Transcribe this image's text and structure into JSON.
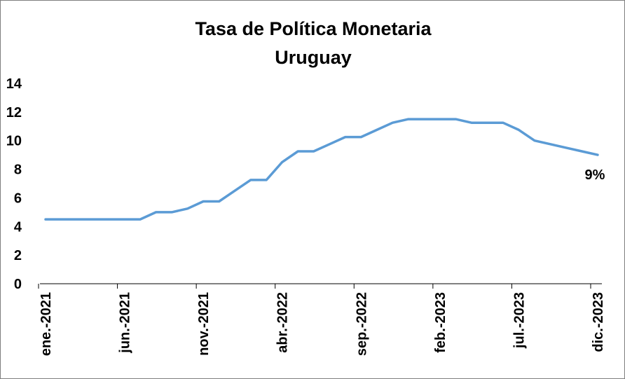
{
  "chart_data": {
    "type": "line",
    "title": "Tasa de Política Monetaria",
    "subtitle": "Uruguay",
    "xlabel": "",
    "ylabel": "",
    "ylim": [
      0,
      14
    ],
    "yticks": [
      "0",
      "2",
      "4",
      "6",
      "8",
      "10",
      "12",
      "14"
    ],
    "grid": false,
    "legend": "none",
    "line_color": "#5B9BD5",
    "x": [
      "2021-01",
      "2021-02",
      "2021-03",
      "2021-04",
      "2021-05",
      "2021-06",
      "2021-07",
      "2021-08",
      "2021-09",
      "2021-10",
      "2021-11",
      "2021-12",
      "2022-01",
      "2022-02",
      "2022-03",
      "2022-04",
      "2022-05",
      "2022-06",
      "2022-07",
      "2022-08",
      "2022-09",
      "2022-10",
      "2022-11",
      "2022-12",
      "2023-01",
      "2023-02",
      "2023-03",
      "2023-04",
      "2023-05",
      "2023-06",
      "2023-07",
      "2023-08",
      "2023-09",
      "2023-10",
      "2023-11",
      "2023-12"
    ],
    "xtick_labels": [
      {
        "label": "ene.-2021",
        "x": "2021-01"
      },
      {
        "label": "jun.-2021",
        "x": "2021-06"
      },
      {
        "label": "nov.-2021",
        "x": "2021-11"
      },
      {
        "label": "abr.-2022",
        "x": "2022-04"
      },
      {
        "label": "sep.-2022",
        "x": "2022-09"
      },
      {
        "label": "feb.-2023",
        "x": "2023-02"
      },
      {
        "label": "jul.-2023",
        "x": "2023-07"
      },
      {
        "label": "dic.-2023",
        "x": "2023-12"
      }
    ],
    "series": [
      {
        "values": [
          4.5,
          4.5,
          4.5,
          4.5,
          4.5,
          4.5,
          4.5,
          5.0,
          5.0,
          5.25,
          5.75,
          5.75,
          6.5,
          7.25,
          7.25,
          8.5,
          9.25,
          9.25,
          9.75,
          10.25,
          10.25,
          10.75,
          11.25,
          11.5,
          11.5,
          11.5,
          11.5,
          11.25,
          11.25,
          11.25,
          10.75,
          10.0,
          9.75,
          9.5,
          9.25,
          9.0
        ]
      }
    ],
    "annotations": [
      {
        "text": "9%",
        "x": "2023-12",
        "y": 9.0
      }
    ]
  }
}
